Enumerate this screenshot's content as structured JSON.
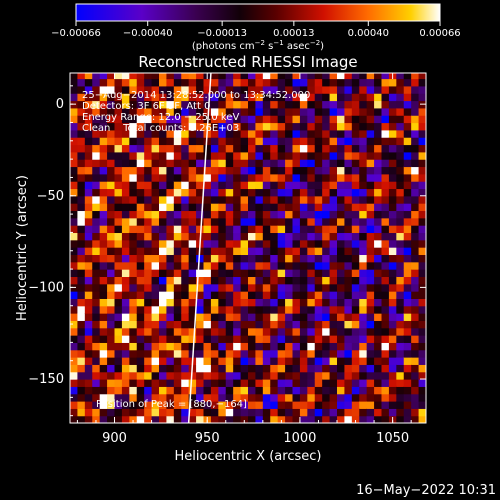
{
  "chart_data": {
    "type": "heatmap",
    "title": "Reconstructed RHESSI Image",
    "xlabel": "Heliocentric X (arcsec)",
    "ylabel": "Heliocentric Y (arcsec)",
    "x_ticks": [
      "900",
      "950",
      "1000",
      "1050"
    ],
    "x_tick_values": [
      900,
      950,
      1000,
      1050
    ],
    "y_ticks": [
      "0",
      "−50",
      "−100",
      "−150"
    ],
    "y_tick_values": [
      0,
      -50,
      -100,
      -150
    ],
    "xlim": [
      876,
      1068
    ],
    "ylim": [
      -174,
      17
    ],
    "colorbar": {
      "ticks": [
        "−0.00066",
        "−0.00040",
        "−0.00013",
        "0.00013",
        "0.00040",
        "0.00066"
      ],
      "tick_values": [
        -0.00066,
        -0.0004,
        -0.00013,
        0.00013,
        0.0004,
        0.00066
      ],
      "range": [
        -0.00066,
        0.00066
      ],
      "label_main": "(photons cm",
      "label_exp1": "−2",
      "label_mid1": " s",
      "label_exp2": "−1",
      "label_mid2": " asec",
      "label_exp3": "−2",
      "label_end": ")"
    },
    "annotations": [
      "25−Aug−2014 13:28:52.000 to 13:34:52.000",
      "Detectors: 3F 6F 9F, Att 0",
      "Energy Range: 12.0 − 25.0 keV",
      "Clean    Total counts: 3.26E+03"
    ],
    "position_label": "Position of Peak = [880,−164]",
    "limb_line": {
      "x": [
        940,
        952
      ],
      "y": [
        -174,
        17
      ]
    },
    "peak": [
      880,
      -164
    ]
  },
  "timestamp": "16−May−2022 10:31",
  "colors": {
    "background": "#000000",
    "foreground": "#ffffff",
    "colormap": [
      "#0000ff",
      "#6a00b0",
      "#300040",
      "#000000",
      "#550000",
      "#b00000",
      "#ff2000",
      "#ff8800",
      "#ffd700",
      "#ffffff"
    ]
  }
}
